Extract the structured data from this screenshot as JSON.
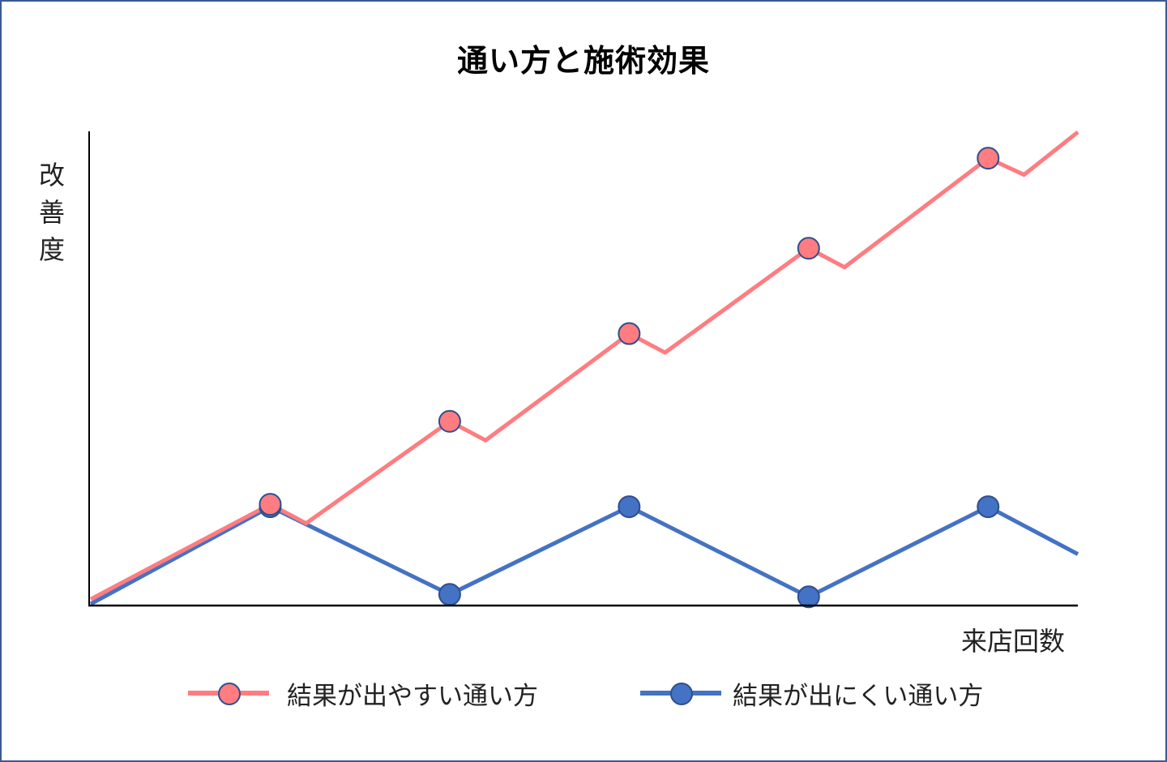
{
  "chart_data": {
    "type": "line",
    "title": "通い方と施術効果",
    "xlabel": "来店回数",
    "ylabel": "改善度",
    "grid": false,
    "legend_position": "bottom",
    "axes": {
      "x_ticks": false,
      "y_ticks": false
    },
    "series": [
      {
        "name": "結果が出やすい通い方",
        "color": "#ff7c80",
        "marker_border": "#2f4f8f",
        "points": [
          [
            0,
            0.02
          ],
          [
            1,
            0.42
          ],
          [
            1.2,
            0.34
          ],
          [
            2,
            0.77
          ],
          [
            2.2,
            0.69
          ],
          [
            3,
            1.14
          ],
          [
            3.2,
            1.06
          ],
          [
            4,
            1.5
          ],
          [
            4.2,
            1.42
          ],
          [
            5,
            1.88
          ],
          [
            5.2,
            1.81
          ],
          [
            5.5,
            1.99
          ]
        ],
        "marker_points": [
          [
            1,
            0.42
          ],
          [
            2,
            0.77
          ],
          [
            3,
            1.14
          ],
          [
            4,
            1.5
          ],
          [
            5,
            1.88
          ]
        ]
      },
      {
        "name": "結果が出にくい通い方",
        "color": "#4472c4",
        "marker_border": "#2f4f8f",
        "points": [
          [
            0,
            0.0
          ],
          [
            1,
            0.41
          ],
          [
            2,
            0.04
          ],
          [
            3,
            0.41
          ],
          [
            4,
            0.03
          ],
          [
            5,
            0.41
          ],
          [
            5.5,
            0.21
          ]
        ],
        "marker_points": [
          [
            1,
            0.41
          ],
          [
            2,
            0.04
          ],
          [
            3,
            0.41
          ],
          [
            4,
            0.03
          ],
          [
            5,
            0.41
          ]
        ]
      }
    ],
    "xlim": [
      0,
      5.5
    ],
    "ylim": [
      0,
      2.0
    ]
  },
  "legend": {
    "items": [
      {
        "label": "結果が出やすい通い方",
        "color": "#ff7c80"
      },
      {
        "label": "結果が出にくい通い方",
        "color": "#4472c4"
      }
    ]
  }
}
